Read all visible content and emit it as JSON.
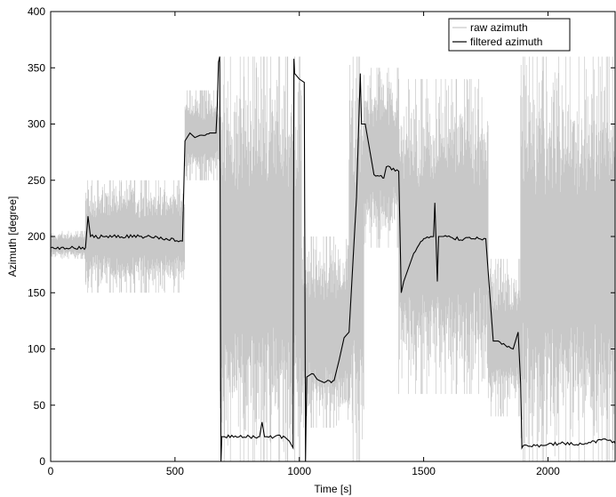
{
  "chart_data": {
    "type": "line",
    "title": "",
    "xlabel": "Time [s]",
    "ylabel": "Azimuth [degree]",
    "xlim": [
      0,
      2270
    ],
    "ylim": [
      0,
      400
    ],
    "x_ticks": [
      0,
      500,
      1000,
      1500,
      2000
    ],
    "y_ticks": [
      0,
      50,
      100,
      150,
      200,
      250,
      300,
      350,
      400
    ],
    "grid": false,
    "legend": {
      "position": "top-right",
      "entries": [
        "raw azimuth",
        "filtered azimuth"
      ]
    },
    "colors": {
      "raw": "#c8c8c8",
      "filtered": "#000000"
    },
    "series": [
      {
        "name": "raw azimuth",
        "style": "noisy band",
        "bands": [
          {
            "x": [
              0,
              140
            ],
            "low": 180,
            "high": 205
          },
          {
            "x": [
              140,
              540
            ],
            "low": 150,
            "high": 250
          },
          {
            "x": [
              540,
              680
            ],
            "low": 250,
            "high": 330
          },
          {
            "x": [
              680,
              1010
            ],
            "low": 0,
            "high": 360
          },
          {
            "x": [
              1010,
              1200
            ],
            "low": 30,
            "high": 200
          },
          {
            "x": [
              1200,
              1260
            ],
            "low": 0,
            "high": 360
          },
          {
            "x": [
              1260,
              1400
            ],
            "low": 190,
            "high": 350
          },
          {
            "x": [
              1400,
              1760
            ],
            "low": 60,
            "high": 340
          },
          {
            "x": [
              1760,
              1890
            ],
            "low": 40,
            "high": 180
          },
          {
            "x": [
              1890,
              2270
            ],
            "low": 0,
            "high": 360
          }
        ]
      },
      {
        "name": "filtered azimuth",
        "x": [
          0,
          140,
          150,
          160,
          250,
          400,
          530,
          540,
          560,
          580,
          600,
          640,
          665,
          670,
          675,
          680,
          685,
          688,
          700,
          800,
          840,
          850,
          860,
          870,
          900,
          940,
          960,
          975,
          978,
          981,
          1000,
          1020,
          1025,
          1030,
          1050,
          1080,
          1100,
          1140,
          1160,
          1180,
          1200,
          1230,
          1245,
          1250,
          1265,
          1300,
          1340,
          1350,
          1400,
          1410,
          1420,
          1460,
          1500,
          1540,
          1545,
          1555,
          1560,
          1580,
          1620,
          1700,
          1750,
          1780,
          1800,
          1860,
          1880,
          1890,
          1893,
          1895,
          1900,
          1950,
          2050,
          2150,
          2230,
          2270
        ],
        "y": [
          190,
          190,
          218,
          200,
          200,
          200,
          196,
          285,
          292,
          288,
          290,
          292,
          292,
          315,
          355,
          360,
          0,
          22,
          22,
          22,
          22,
          35,
          22,
          22,
          22,
          22,
          18,
          12,
          358,
          345,
          340,
          337,
          0,
          75,
          78,
          72,
          70,
          72,
          90,
          110,
          115,
          235,
          345,
          300,
          300,
          255,
          252,
          262,
          258,
          150,
          160,
          185,
          198,
          200,
          230,
          160,
          200,
          200,
          198,
          198,
          198,
          107,
          107,
          100,
          115,
          70,
          40,
          12,
          14,
          14,
          16,
          16,
          20,
          16
        ]
      }
    ]
  }
}
